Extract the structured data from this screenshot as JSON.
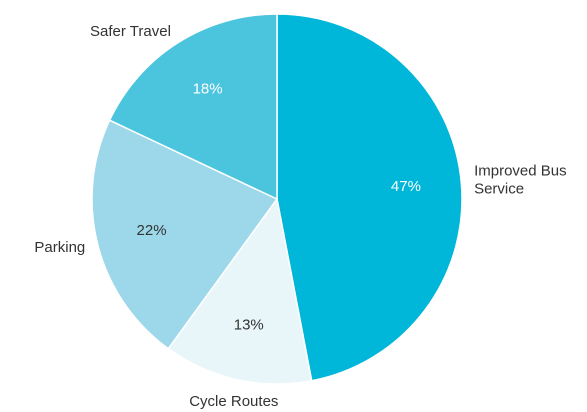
{
  "chart_data": {
    "type": "pie",
    "categories": [
      "Improved Bus Service",
      "Cycle Routes",
      "Parking",
      "Safer Travel"
    ],
    "values": [
      47,
      13,
      22,
      18
    ],
    "value_labels": [
      "47%",
      "13%",
      "22%",
      "18%"
    ],
    "colors": [
      "#00b6d9",
      "#e8f6fa",
      "#9dd8ea",
      "#4bc4dd"
    ]
  }
}
